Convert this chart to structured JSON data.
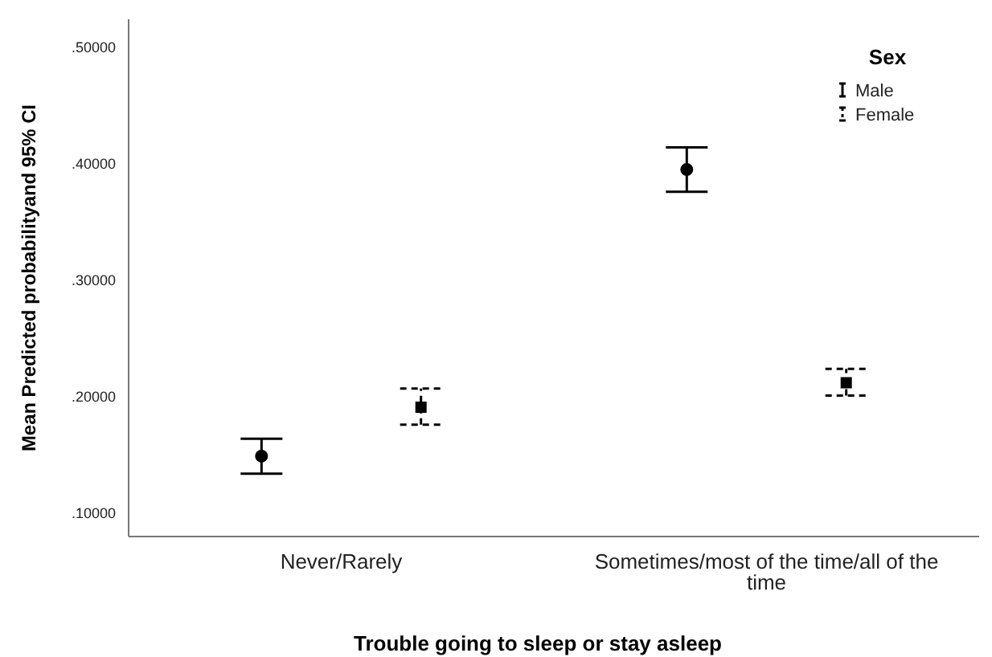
{
  "chart_data": {
    "type": "scatter",
    "xlabel": "Trouble going to sleep or stay asleep",
    "ylabel": "Mean Predicted probabilityand 95% CI",
    "legend_title": "Sex",
    "legend": "top right",
    "categories": [
      "Never/Rarely",
      "Sometimes/most of the time/all of the time"
    ],
    "ylim": [
      0.08,
      0.524
    ],
    "yticks": [
      {
        "value": 0.1,
        "label": ".10000"
      },
      {
        "value": 0.2,
        "label": ".20000"
      },
      {
        "value": 0.3,
        "label": ".30000"
      },
      {
        "value": 0.4,
        "label": ".40000"
      },
      {
        "value": 0.5,
        "label": ".50000"
      }
    ],
    "series": [
      {
        "name": "Male",
        "color": "#000000",
        "marker": "circle",
        "line_style": "solid",
        "values": [
          0.149,
          0.395
        ],
        "errors": [
          [
            0.134,
            0.164
          ],
          [
            0.376,
            0.414
          ]
        ]
      },
      {
        "name": "Female",
        "color": "#000000",
        "marker": "square",
        "line_style": "dashed",
        "values": [
          0.191,
          0.212
        ],
        "errors": [
          [
            0.176,
            0.207
          ],
          [
            0.201,
            0.224
          ]
        ]
      }
    ]
  }
}
